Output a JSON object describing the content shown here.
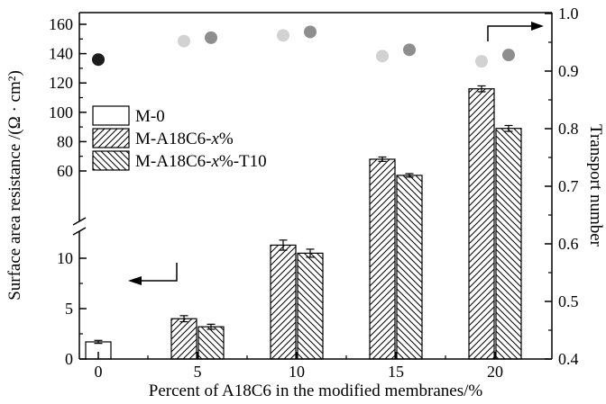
{
  "chart_data": {
    "type": "bar",
    "composition": "grouped hatched bars with error bars on a broken left axis, plus scatter points on right axis",
    "title": "",
    "xlabel": "Percent of A18C6 in the modified membranes/%",
    "ylabel_left": "Surface area resistance /(Ω · cm²)",
    "ylabel_right": "Transport number",
    "categories": [
      0,
      5,
      10,
      15,
      20
    ],
    "x_tick_labels": [
      "0",
      "5",
      "10",
      "15",
      "20"
    ],
    "left_axis": {
      "scale_break": true,
      "lower_range": [
        0,
        13
      ],
      "upper_range_shown": [
        60,
        160
      ],
      "lower_tick_labels": [
        "0",
        "5",
        "10"
      ],
      "upper_tick_labels": [
        "60",
        "80",
        "100",
        "120",
        "140",
        "160"
      ]
    },
    "right_axis": {
      "range": [
        0.4,
        1.0
      ],
      "tick_labels": [
        "0.4",
        "0.5",
        "0.6",
        "0.7",
        "0.8",
        "0.9",
        "1.0"
      ]
    },
    "bar_series": [
      {
        "name": "M-0",
        "hatch": "none",
        "values": [
          1.7,
          null,
          null,
          null,
          null
        ],
        "errors": [
          0.15,
          null,
          null,
          null,
          null
        ]
      },
      {
        "name": "M-A18C6-x%",
        "hatch": "forward",
        "values": [
          null,
          4.0,
          11.3,
          68,
          116
        ],
        "errors": [
          null,
          0.3,
          0.5,
          1.5,
          2
        ]
      },
      {
        "name": "M-A18C6-x%-T10",
        "hatch": "backward",
        "values": [
          null,
          3.2,
          10.5,
          57,
          89
        ],
        "errors": [
          null,
          0.25,
          0.4,
          1.2,
          2
        ]
      }
    ],
    "scatter_series": [
      {
        "name": "M-0 transport number",
        "color": "#1c1c1c",
        "values": [
          0.92,
          null,
          null,
          null,
          null
        ]
      },
      {
        "name": "M-A18C6-x% transport number",
        "color": "#d2d2d2",
        "values": [
          null,
          0.952,
          0.962,
          0.926,
          0.917
        ]
      },
      {
        "name": "M-A18C6-x%-T10 transport number",
        "color": "#8e8e8e",
        "values": [
          null,
          0.958,
          0.968,
          0.937,
          0.928
        ]
      }
    ],
    "legend": {
      "position": "upper-left-inside",
      "entries": [
        {
          "swatch": "none",
          "parts": [
            {
              "t": "M-0",
              "italic": false
            }
          ]
        },
        {
          "swatch": "forward",
          "parts": [
            {
              "t": "M-A18C6-",
              "italic": false
            },
            {
              "t": "x",
              "italic": true
            },
            {
              "t": "%",
              "italic": false
            }
          ]
        },
        {
          "swatch": "backward",
          "parts": [
            {
              "t": "M-A18C6-",
              "italic": false
            },
            {
              "t": "x",
              "italic": true
            },
            {
              "t": "%-T10",
              "italic": false
            }
          ]
        }
      ]
    },
    "annotations": [
      {
        "type": "arrow",
        "direction": "left",
        "meaning": "bars read on left axis"
      },
      {
        "type": "arrow",
        "direction": "right",
        "meaning": "points read on right axis"
      }
    ],
    "colors": {
      "axis": "#000000",
      "bar_fill": "#ffffff",
      "bar_edge": "#000000",
      "hatch": "#000000",
      "background": "#ffffff"
    }
  }
}
